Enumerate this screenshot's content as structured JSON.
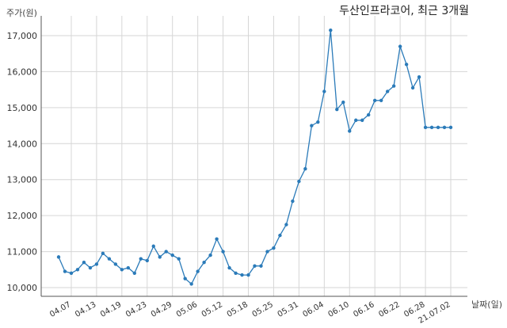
{
  "chart_data": {
    "type": "line",
    "title": "두산인프라코어, 최근 3개월",
    "ylabel": "주가(원)",
    "xlabel": "날짜(일)",
    "ylim": [
      10000,
      17000
    ],
    "y_ticks": [
      10000,
      11000,
      12000,
      13000,
      14000,
      15000,
      16000,
      17000
    ],
    "y_tick_labels": [
      "10,000",
      "11,000",
      "12,000",
      "13,000",
      "14,000",
      "15,000",
      "16,000",
      "17,000"
    ],
    "grid": true,
    "color": "#2b7bb9",
    "x": [
      "04.05",
      "04.06",
      "04.07",
      "04.08",
      "04.09",
      "04.12",
      "04.13",
      "04.14",
      "04.15",
      "04.16",
      "04.19",
      "04.20",
      "04.21",
      "04.22",
      "04.23",
      "04.26",
      "04.27",
      "04.28",
      "04.29",
      "04.30",
      "05.03",
      "05.04",
      "05.06",
      "05.07",
      "05.10",
      "05.11",
      "05.12",
      "05.13",
      "05.14",
      "05.17",
      "05.18",
      "05.20",
      "05.21",
      "05.24",
      "05.25",
      "05.26",
      "05.27",
      "05.28",
      "05.31",
      "06.01",
      "06.02",
      "06.03",
      "06.04",
      "06.07",
      "06.08",
      "06.09",
      "06.10",
      "06.11",
      "06.14",
      "06.15",
      "06.16",
      "06.17",
      "06.18",
      "06.21",
      "06.22",
      "06.23",
      "06.24",
      "06.25",
      "06.28",
      "06.29",
      "06.30",
      "07.01",
      "21.07.02"
    ],
    "values": [
      10850,
      10450,
      10400,
      10500,
      10700,
      10550,
      10650,
      10950,
      10800,
      10650,
      10500,
      10550,
      10400,
      10800,
      10750,
      11150,
      10850,
      11000,
      10900,
      10800,
      10250,
      10100,
      10450,
      10700,
      10900,
      11350,
      11000,
      10550,
      10400,
      10350,
      10350,
      10600,
      10600,
      11000,
      11100,
      11450,
      11750,
      12400,
      12950,
      13300,
      14500,
      14600,
      15450,
      17150,
      14950,
      15150,
      14350,
      14650,
      14650,
      14800,
      15200,
      15200,
      15450,
      15600,
      16700,
      16200,
      15550,
      15850,
      14450,
      14450,
      14450,
      14450,
      14450
    ],
    "x_tick_labels": [
      "04.07",
      "04.13",
      "04.19",
      "04.23",
      "04.29",
      "05.06",
      "05.12",
      "05.18",
      "05.25",
      "05.31",
      "06.04",
      "06.10",
      "06.16",
      "06.22",
      "06.28",
      "21.07.02"
    ]
  }
}
